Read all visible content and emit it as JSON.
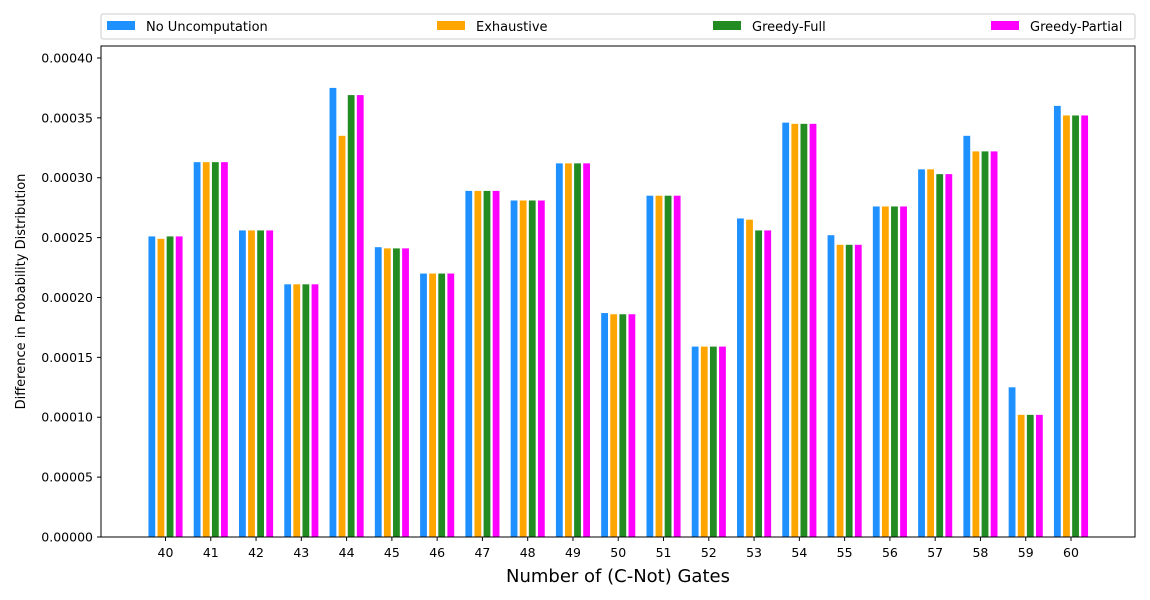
{
  "chart_data": {
    "type": "bar",
    "title": "",
    "xlabel": "Number of (C-Not) Gates",
    "ylabel": "Difference in Probability Distribution",
    "categories": [
      "40",
      "41",
      "42",
      "43",
      "44",
      "45",
      "46",
      "47",
      "48",
      "49",
      "50",
      "51",
      "52",
      "53",
      "54",
      "55",
      "56",
      "57",
      "58",
      "59",
      "60"
    ],
    "ylim": [
      0,
      0.00041
    ],
    "yticks": [
      "0.00000",
      "0.00005",
      "0.00010",
      "0.00015",
      "0.00020",
      "0.00025",
      "0.00030",
      "0.00035",
      "0.00040"
    ],
    "ytick_values": [
      0,
      5e-05,
      0.0001,
      0.00015,
      0.0002,
      0.00025,
      0.0003,
      0.00035,
      0.0004
    ],
    "legend_position": "top (horizontal, spanning plot width)",
    "grid": false,
    "series": [
      {
        "name": "No Uncomputation",
        "color": "#1e90ff",
        "values": [
          0.000251,
          0.000313,
          0.000256,
          0.000211,
          0.000375,
          0.000242,
          0.00022,
          0.000289,
          0.000281,
          0.000312,
          0.000187,
          0.000285,
          0.000159,
          0.000266,
          0.000346,
          0.000252,
          0.000276,
          0.000307,
          0.000335,
          0.000125,
          0.00036
        ]
      },
      {
        "name": "Exhaustive",
        "color": "#ffa500",
        "values": [
          0.000249,
          0.000313,
          0.000256,
          0.000211,
          0.000335,
          0.000241,
          0.00022,
          0.000289,
          0.000281,
          0.000312,
          0.000186,
          0.000285,
          0.000159,
          0.000265,
          0.000345,
          0.000244,
          0.000276,
          0.000307,
          0.000322,
          0.000102,
          0.000352
        ]
      },
      {
        "name": "Greedy-Full",
        "color": "#228b22",
        "values": [
          0.000251,
          0.000313,
          0.000256,
          0.000211,
          0.000369,
          0.000241,
          0.00022,
          0.000289,
          0.000281,
          0.000312,
          0.000186,
          0.000285,
          0.000159,
          0.000256,
          0.000345,
          0.000244,
          0.000276,
          0.000303,
          0.000322,
          0.000102,
          0.000352
        ]
      },
      {
        "name": "Greedy-Partial",
        "color": "#ff00ff",
        "values": [
          0.000251,
          0.000313,
          0.000256,
          0.000211,
          0.000369,
          0.000241,
          0.00022,
          0.000289,
          0.000281,
          0.000312,
          0.000186,
          0.000285,
          0.000159,
          0.000256,
          0.000345,
          0.000244,
          0.000276,
          0.000303,
          0.000322,
          0.000102,
          0.000352
        ]
      }
    ]
  }
}
